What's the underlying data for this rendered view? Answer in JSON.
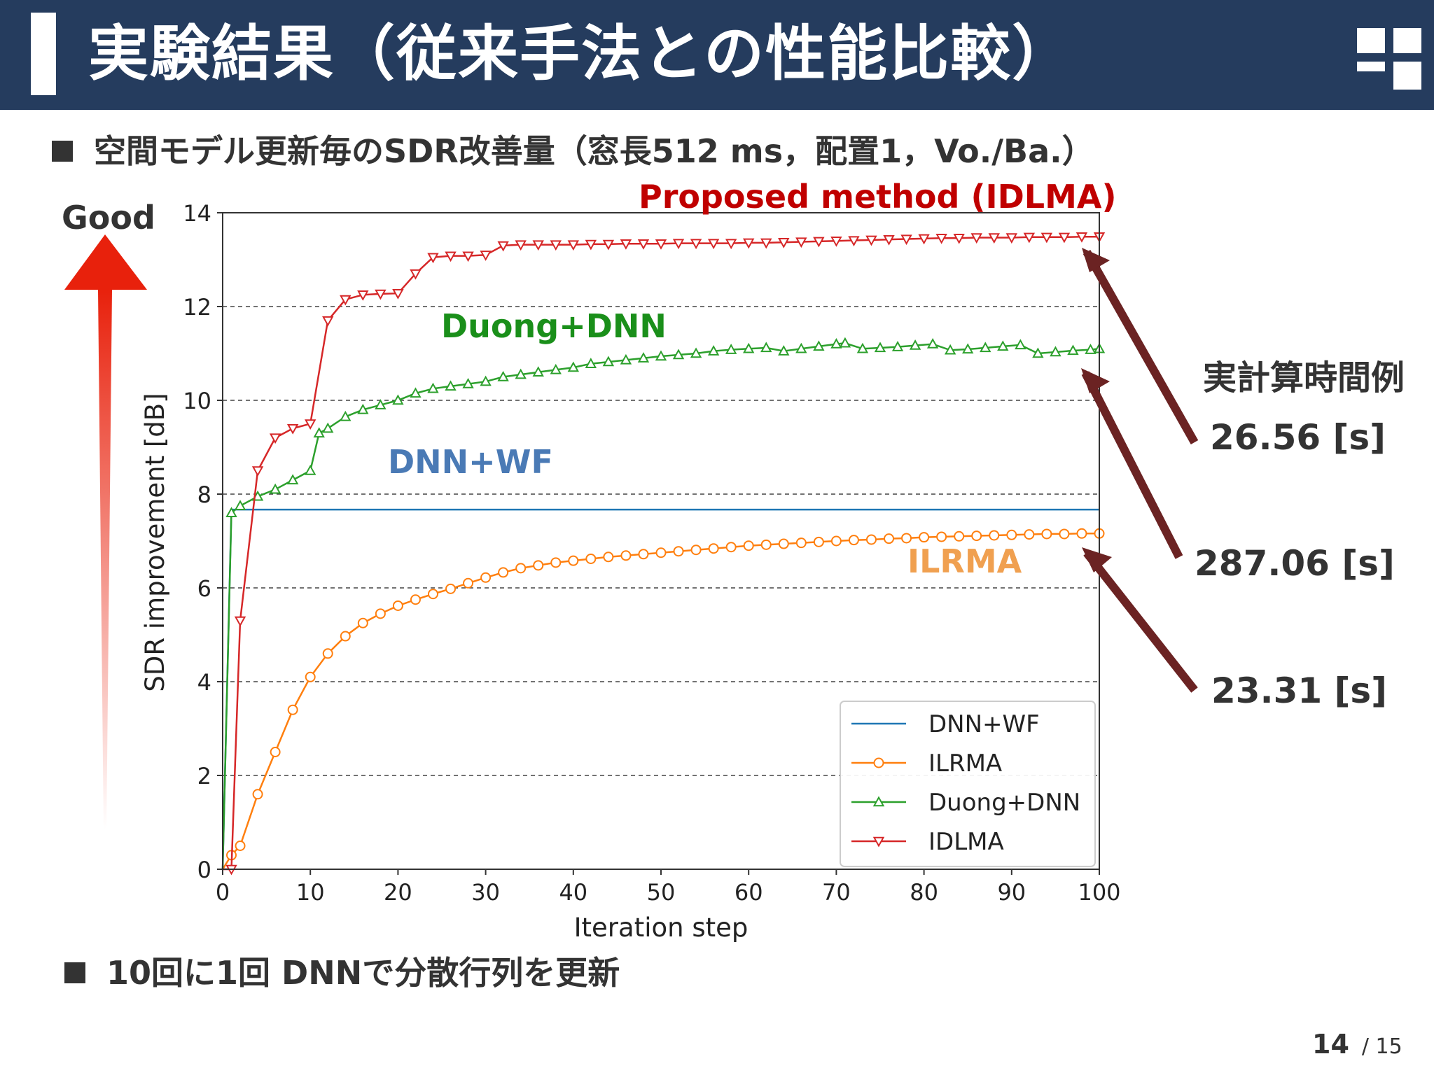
{
  "header": {
    "title": "実験結果（従来手法との性能比較）"
  },
  "bullets": {
    "top": "空間モデル更新毎のSDR改善量（窓長512 ms，配置1，Vo./Ba.）",
    "bottom": "10回に1回 DNNで分散行列を更新"
  },
  "good_label": "Good",
  "side": {
    "title": "実計算時間例",
    "times": [
      "26.56 [s]",
      "287.06 [s]",
      "23.31 [s]"
    ]
  },
  "page": {
    "current": "14",
    "total": "/ 15"
  },
  "colors": {
    "header": "#253c5e",
    "dnnwf": "#1f77b4",
    "ilrma": "#ff7f0e",
    "duong": "#2ca02c",
    "idlma": "#d62728",
    "arrow": "#6b2323",
    "good_arrow": "#e8210c"
  },
  "chart_data": {
    "type": "line",
    "xlabel": "Iteration step",
    "ylabel": "SDR improvement [dB]",
    "xlim": [
      0,
      100
    ],
    "ylim": [
      0,
      14
    ],
    "xticks": [
      "0",
      "10",
      "20",
      "30",
      "40",
      "50",
      "60",
      "70",
      "80",
      "90",
      "100"
    ],
    "yticks": [
      "0",
      "2",
      "4",
      "6",
      "8",
      "10",
      "12",
      "14"
    ],
    "grid": "horizontal dashed",
    "legend_position": "lower-right",
    "annotations": [
      "Proposed method (IDLMA)",
      "Duong+DNN",
      "DNN+WF",
      "ILRMA"
    ],
    "series": [
      {
        "name": "DNN+WF",
        "marker": "none",
        "points": [
          [
            0,
            0
          ],
          [
            1,
            7.67
          ],
          [
            100,
            7.67
          ]
        ]
      },
      {
        "name": "ILRMA",
        "marker": "circle",
        "points": [
          [
            0,
            0
          ],
          [
            1,
            0.3
          ],
          [
            2,
            0.5
          ],
          [
            4,
            1.6
          ],
          [
            6,
            2.5
          ],
          [
            8,
            3.4
          ],
          [
            10,
            4.1
          ],
          [
            12,
            4.6
          ],
          [
            14,
            4.97
          ],
          [
            16,
            5.25
          ],
          [
            18,
            5.45
          ],
          [
            20,
            5.62
          ],
          [
            22,
            5.75
          ],
          [
            24,
            5.87
          ],
          [
            26,
            5.98
          ],
          [
            28,
            6.1
          ],
          [
            30,
            6.22
          ],
          [
            32,
            6.33
          ],
          [
            34,
            6.42
          ],
          [
            36,
            6.48
          ],
          [
            38,
            6.54
          ],
          [
            40,
            6.58
          ],
          [
            42,
            6.62
          ],
          [
            44,
            6.66
          ],
          [
            46,
            6.69
          ],
          [
            48,
            6.72
          ],
          [
            50,
            6.75
          ],
          [
            52,
            6.78
          ],
          [
            54,
            6.81
          ],
          [
            56,
            6.84
          ],
          [
            58,
            6.87
          ],
          [
            60,
            6.9
          ],
          [
            62,
            6.92
          ],
          [
            64,
            6.94
          ],
          [
            66,
            6.96
          ],
          [
            68,
            6.98
          ],
          [
            70,
            7.0
          ],
          [
            72,
            7.02
          ],
          [
            74,
            7.03
          ],
          [
            76,
            7.05
          ],
          [
            78,
            7.06
          ],
          [
            80,
            7.08
          ],
          [
            82,
            7.09
          ],
          [
            84,
            7.1
          ],
          [
            86,
            7.11
          ],
          [
            88,
            7.12
          ],
          [
            90,
            7.13
          ],
          [
            92,
            7.14
          ],
          [
            94,
            7.15
          ],
          [
            96,
            7.15
          ],
          [
            98,
            7.16
          ],
          [
            100,
            7.16
          ]
        ]
      },
      {
        "name": "Duong+DNN",
        "marker": "triangle-up",
        "points": [
          [
            0,
            0
          ],
          [
            1,
            7.6
          ],
          [
            2,
            7.75
          ],
          [
            4,
            7.95
          ],
          [
            6,
            8.1
          ],
          [
            8,
            8.3
          ],
          [
            10,
            8.5
          ],
          [
            11,
            9.3
          ],
          [
            12,
            9.4
          ],
          [
            14,
            9.65
          ],
          [
            16,
            9.8
          ],
          [
            18,
            9.9
          ],
          [
            20,
            10.0
          ],
          [
            22,
            10.15
          ],
          [
            24,
            10.25
          ],
          [
            26,
            10.3
          ],
          [
            28,
            10.35
          ],
          [
            30,
            10.4
          ],
          [
            32,
            10.5
          ],
          [
            34,
            10.55
          ],
          [
            36,
            10.6
          ],
          [
            38,
            10.65
          ],
          [
            40,
            10.7
          ],
          [
            42,
            10.78
          ],
          [
            44,
            10.82
          ],
          [
            46,
            10.86
          ],
          [
            48,
            10.9
          ],
          [
            50,
            10.94
          ],
          [
            52,
            10.97
          ],
          [
            54,
            11.0
          ],
          [
            56,
            11.05
          ],
          [
            58,
            11.08
          ],
          [
            60,
            11.1
          ],
          [
            62,
            11.12
          ],
          [
            64,
            11.05
          ],
          [
            66,
            11.1
          ],
          [
            68,
            11.15
          ],
          [
            70,
            11.2
          ],
          [
            71,
            11.22
          ],
          [
            73,
            11.1
          ],
          [
            75,
            11.12
          ],
          [
            77,
            11.14
          ],
          [
            79,
            11.17
          ],
          [
            81,
            11.2
          ],
          [
            83,
            11.07
          ],
          [
            85,
            11.09
          ],
          [
            87,
            11.12
          ],
          [
            89,
            11.15
          ],
          [
            91,
            11.18
          ],
          [
            93,
            11.0
          ],
          [
            95,
            11.03
          ],
          [
            97,
            11.06
          ],
          [
            99,
            11.08
          ],
          [
            100,
            11.1
          ]
        ]
      },
      {
        "name": "IDLMA",
        "marker": "triangle-down",
        "points": [
          [
            0,
            0
          ],
          [
            1,
            0
          ],
          [
            2,
            5.3
          ],
          [
            4,
            8.5
          ],
          [
            6,
            9.2
          ],
          [
            8,
            9.4
          ],
          [
            10,
            9.5
          ],
          [
            12,
            11.7
          ],
          [
            14,
            12.15
          ],
          [
            16,
            12.25
          ],
          [
            18,
            12.27
          ],
          [
            20,
            12.28
          ],
          [
            22,
            12.7
          ],
          [
            24,
            13.05
          ],
          [
            26,
            13.08
          ],
          [
            28,
            13.08
          ],
          [
            30,
            13.1
          ],
          [
            32,
            13.3
          ],
          [
            34,
            13.32
          ],
          [
            36,
            13.32
          ],
          [
            38,
            13.32
          ],
          [
            40,
            13.32
          ],
          [
            42,
            13.33
          ],
          [
            44,
            13.33
          ],
          [
            46,
            13.34
          ],
          [
            48,
            13.34
          ],
          [
            50,
            13.34
          ],
          [
            52,
            13.35
          ],
          [
            54,
            13.35
          ],
          [
            56,
            13.35
          ],
          [
            58,
            13.35
          ],
          [
            60,
            13.36
          ],
          [
            62,
            13.36
          ],
          [
            64,
            13.37
          ],
          [
            66,
            13.38
          ],
          [
            68,
            13.39
          ],
          [
            70,
            13.4
          ],
          [
            72,
            13.41
          ],
          [
            74,
            13.42
          ],
          [
            76,
            13.43
          ],
          [
            78,
            13.44
          ],
          [
            80,
            13.45
          ],
          [
            82,
            13.46
          ],
          [
            84,
            13.46
          ],
          [
            86,
            13.47
          ],
          [
            88,
            13.47
          ],
          [
            90,
            13.47
          ],
          [
            92,
            13.48
          ],
          [
            94,
            13.48
          ],
          [
            96,
            13.48
          ],
          [
            98,
            13.49
          ],
          [
            100,
            13.49
          ]
        ]
      }
    ]
  }
}
